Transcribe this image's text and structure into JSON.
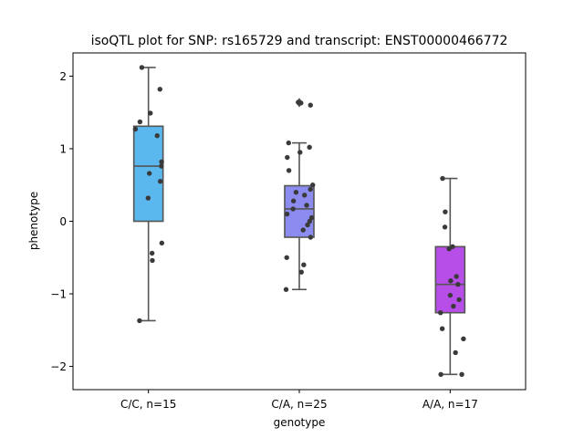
{
  "chart_data": {
    "type": "box",
    "title": "isoQTL plot for SNP: rs165729 and transcript: ENST00000466772",
    "xlabel": "genotype",
    "ylabel": "phenotype",
    "ylim": [
      -2.32,
      2.32
    ],
    "yticks": [
      -2,
      -1,
      0,
      1,
      2
    ],
    "ytick_labels": [
      "−2",
      "−1",
      "0",
      "1",
      "2"
    ],
    "grid": false,
    "point_color": "#3a3a3a",
    "box_edge_color": "#555555",
    "categories": [
      "C/C, n=15",
      "C/A, n=25",
      "A/A, n=17"
    ],
    "series": [
      {
        "color": "#5ab8ee",
        "box": {
          "q1": 0.0,
          "median": 0.76,
          "q3": 1.31,
          "whisker_low": -1.37,
          "whisker_high": 2.12
        },
        "outliers": [],
        "points": [
          2.12,
          1.82,
          1.49,
          1.37,
          1.27,
          1.18,
          0.82,
          0.76,
          0.66,
          0.55,
          0.32,
          -0.3,
          -0.44,
          -0.54,
          -1.37
        ]
      },
      {
        "color": "#8c8cf0",
        "box": {
          "q1": -0.22,
          "median": 0.17,
          "q3": 0.49,
          "whisker_low": -0.94,
          "whisker_high": 1.08
        },
        "outliers": [
          1.62,
          1.65
        ],
        "points": [
          1.64,
          1.63,
          1.6,
          1.08,
          1.02,
          0.95,
          0.88,
          0.7,
          0.5,
          0.44,
          0.4,
          0.36,
          0.28,
          0.22,
          0.17,
          0.1,
          0.05,
          0.0,
          -0.05,
          -0.12,
          -0.22,
          -0.5,
          -0.6,
          -0.7,
          -0.94
        ]
      },
      {
        "color": "#b84ee8",
        "box": {
          "q1": -1.26,
          "median": -0.87,
          "q3": -0.35,
          "whisker_low": -2.11,
          "whisker_high": 0.59
        },
        "outliers": [],
        "points": [
          0.59,
          0.13,
          -0.08,
          -0.35,
          -0.38,
          -0.76,
          -0.82,
          -0.87,
          -1.02,
          -1.08,
          -1.17,
          -1.26,
          -1.48,
          -1.62,
          -1.81,
          -2.11,
          -2.11
        ]
      }
    ]
  }
}
